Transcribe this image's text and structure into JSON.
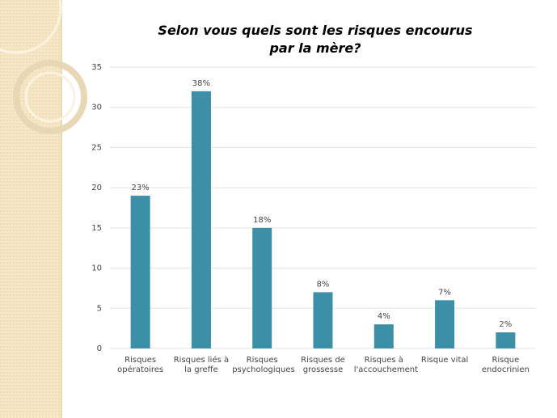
{
  "chart_data": {
    "type": "bar",
    "title": "Selon vous quels sont les risques encourus par la mère?",
    "categories": [
      "Risques opératoires",
      "Risques liés à la greffe",
      "Risques psychologiques",
      "Risques de grossesse",
      "Risques à l'accouchement",
      "Risque vital",
      "Risque endocrinien"
    ],
    "values": [
      19,
      32,
      15,
      7,
      3,
      6,
      2
    ],
    "percent_labels": [
      "23%",
      "38%",
      "18%",
      "8%",
      "4%",
      "7%",
      "2%"
    ],
    "color": "#3b8fa6",
    "ylim": [
      0,
      35
    ],
    "yticks": [
      0,
      5,
      10,
      15,
      20,
      25,
      30,
      35
    ],
    "grid": true
  }
}
